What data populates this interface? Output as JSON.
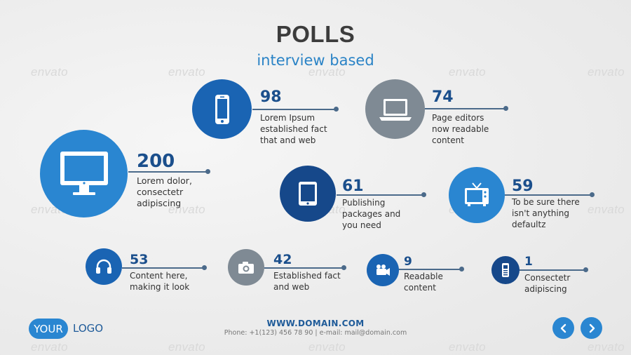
{
  "header": {
    "title": "POLLS",
    "subtitle": "interview based"
  },
  "watermark": "envato",
  "colors": {
    "accent": "#2a86d1",
    "dark_blue": "#1b4f8c",
    "gray": "#7f8a94",
    "line": "#4b6a8a"
  },
  "items": [
    {
      "icon": "desktop-monitor-icon",
      "value": "200",
      "lines": [
        "Lorem dolor,",
        "consectetr",
        "adipiscing"
      ]
    },
    {
      "icon": "smartphone-icon",
      "value": "98",
      "lines": [
        "Lorem Ipsum",
        "established fact",
        "that and web"
      ]
    },
    {
      "icon": "laptop-icon",
      "value": "74",
      "lines": [
        "Page editors",
        "now readable",
        "content"
      ]
    },
    {
      "icon": "tablet-icon",
      "value": "61",
      "lines": [
        "Publishing",
        "packages and",
        "you need"
      ]
    },
    {
      "icon": "tv-icon",
      "value": "59",
      "lines": [
        "To be sure there",
        "isn't anything",
        "defaultz"
      ]
    },
    {
      "icon": "headphones-icon",
      "value": "53",
      "lines": [
        "Content here,",
        "making it look"
      ]
    },
    {
      "icon": "camera-icon",
      "value": "42",
      "lines": [
        "Established fact",
        "and web"
      ]
    },
    {
      "icon": "video-camera-icon",
      "value": "9",
      "lines": [
        "Readable",
        "content"
      ]
    },
    {
      "icon": "mobile-phone-icon",
      "value": "1",
      "lines": [
        "Consectetr",
        "adipiscing"
      ]
    }
  ],
  "footer": {
    "url": "WWW.DOMAIN.COM",
    "contact": "Phone: +1(123) 456 78 90 | e-mail: mail@domain.com",
    "logo_pill": "YOUR",
    "logo_text": "LOGO"
  },
  "nav": {
    "prev_icon": "chevron-left-icon",
    "next_icon": "chevron-right-icon"
  }
}
